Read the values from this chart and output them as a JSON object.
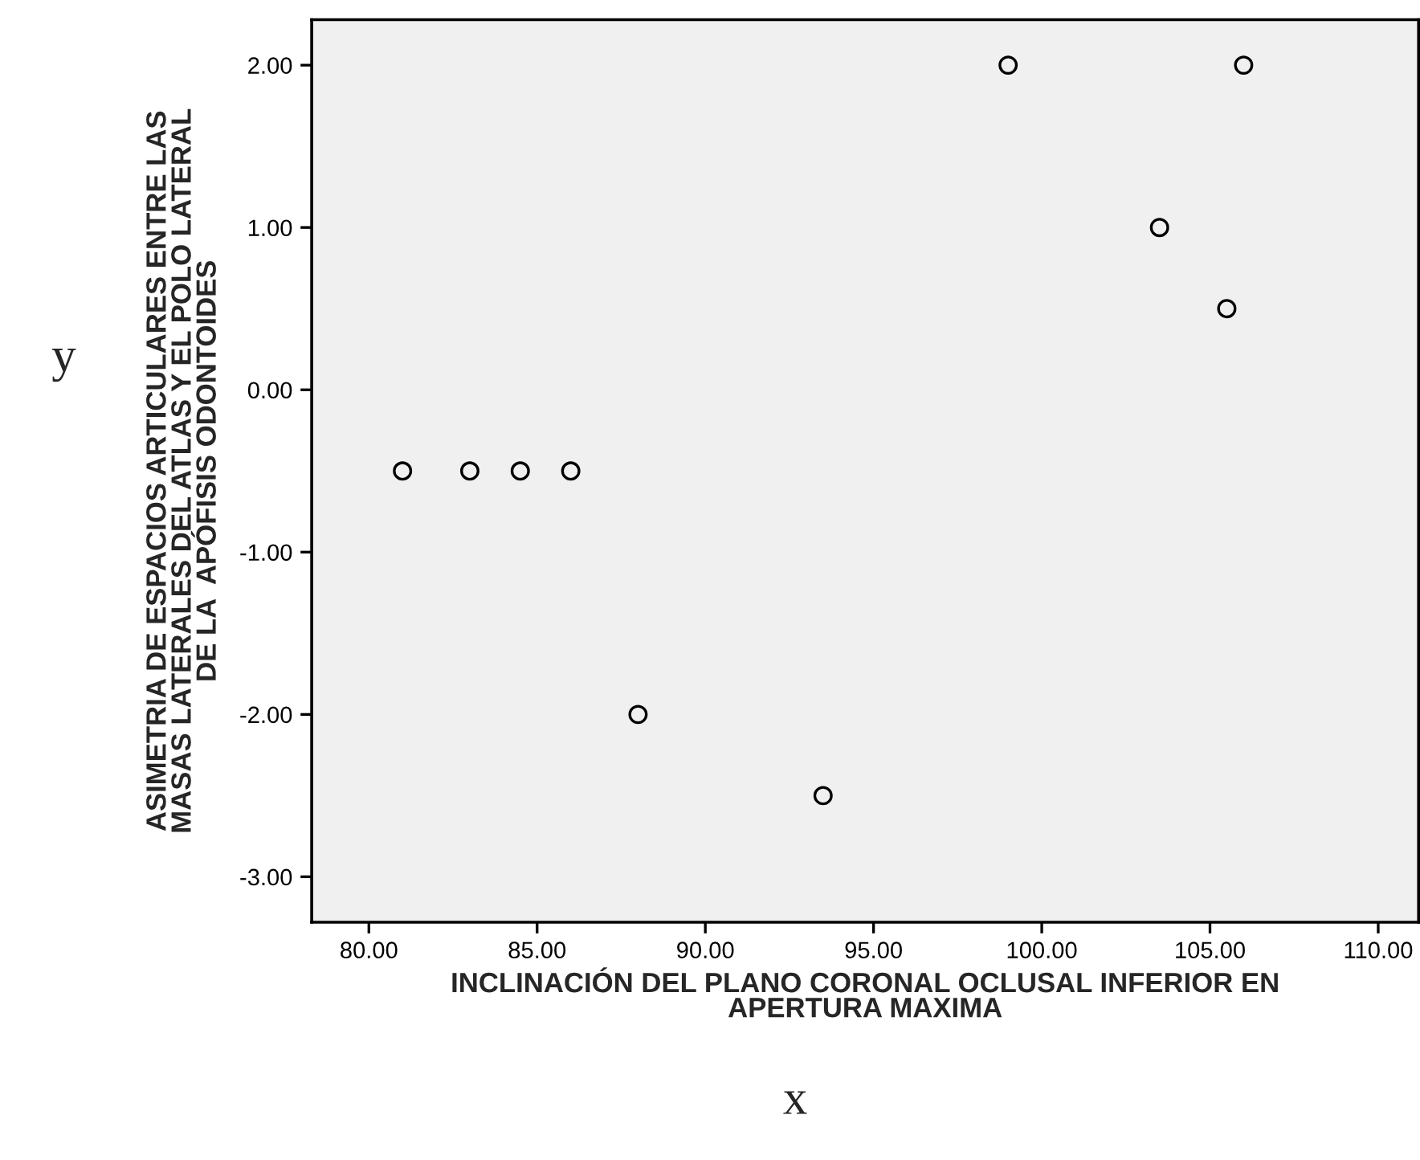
{
  "chart_data": {
    "type": "scatter",
    "xlabel": "INCLINACIÓN DEL PLANO CORONAL OCLUSAL INFERIOR EN\nAPERTURA MAXIMA",
    "ylabel": "ASIMETRIA DE ESPACIOS ARTICULARES ENTRE LAS\nMASAS LATERALES DEL ATLAS Y EL POLO LATERAL\nDE LA  APÓFISIS ODONTOIDES",
    "annotations": [
      "y",
      "x"
    ],
    "x": [
      81.0,
      83.0,
      84.5,
      86.0,
      88.0,
      93.5,
      99.0,
      103.5,
      105.5,
      106.0
    ],
    "values": [
      -0.5,
      -0.5,
      -0.5,
      -0.5,
      -2.0,
      -2.5,
      2.0,
      1.0,
      0.5,
      2.0
    ],
    "color": "#000000",
    "marker": "circle",
    "grid": false,
    "xlim": [
      78.3,
      111.2
    ],
    "xticks": [
      {
        "value": 80,
        "label": "80.00"
      },
      {
        "value": 85,
        "label": "85.00"
      },
      {
        "value": 90,
        "label": "90.00"
      },
      {
        "value": 95,
        "label": "95.00"
      },
      {
        "value": 100,
        "label": "100.00"
      },
      {
        "value": 105,
        "label": "105.00"
      },
      {
        "value": 110,
        "label": "110.00"
      }
    ],
    "ylim": [
      -3.28,
      2.28
    ],
    "yticks": [
      {
        "value": -3,
        "label": "-3.00"
      },
      {
        "value": -2,
        "label": "-2.00"
      },
      {
        "value": -1,
        "label": "-1.00"
      },
      {
        "value": 0,
        "label": "0.00"
      },
      {
        "value": 1,
        "label": "1.00"
      },
      {
        "value": 2,
        "label": "2.00"
      }
    ]
  }
}
